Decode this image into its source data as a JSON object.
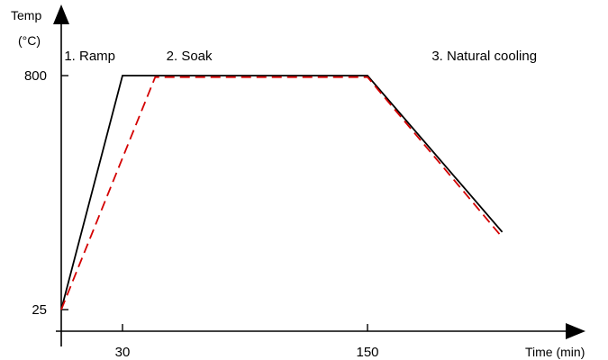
{
  "chart_data": {
    "type": "line",
    "ylabel": [
      "Temp",
      "(°C)"
    ],
    "xlabel": "Time (min)",
    "x_ticks": [
      {
        "value": 30,
        "label": "30"
      },
      {
        "value": 150,
        "label": "150"
      }
    ],
    "y_ticks": [
      {
        "value": 25,
        "label": "25"
      },
      {
        "value": 800,
        "label": "800"
      }
    ],
    "xlim": [
      0,
      270
    ],
    "ylim": [
      0,
      880
    ],
    "grid": false,
    "annotations": [
      {
        "text": "1. Ramp",
        "x": 20,
        "y": 865
      },
      {
        "text": "2. Soak",
        "x": 70,
        "y": 865
      },
      {
        "text": "3. Natural cooling",
        "x": 200,
        "y": 865
      }
    ],
    "series": [
      {
        "color": "#000000",
        "style": "solid",
        "points": [
          [
            0,
            25
          ],
          [
            30,
            800
          ],
          [
            150,
            800
          ],
          [
            216,
            282
          ]
        ]
      },
      {
        "color": "#d40000",
        "style": "dashed",
        "points": [
          [
            0,
            25
          ],
          [
            46,
            795
          ],
          [
            150,
            795
          ],
          [
            216,
            264
          ]
        ]
      }
    ]
  }
}
